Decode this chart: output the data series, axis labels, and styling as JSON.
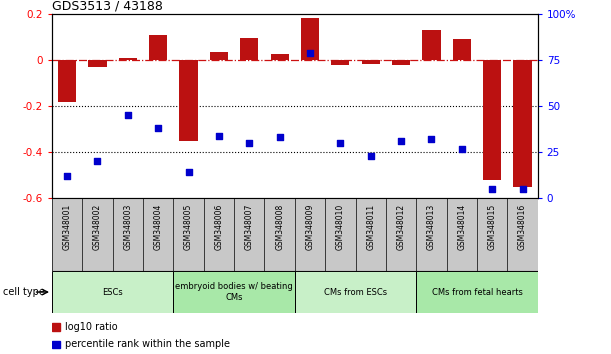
{
  "title": "GDS3513 / 43188",
  "samples": [
    "GSM348001",
    "GSM348002",
    "GSM348003",
    "GSM348004",
    "GSM348005",
    "GSM348006",
    "GSM348007",
    "GSM348008",
    "GSM348009",
    "GSM348010",
    "GSM348011",
    "GSM348012",
    "GSM348013",
    "GSM348014",
    "GSM348015",
    "GSM348016"
  ],
  "log10_ratio": [
    -0.18,
    -0.03,
    0.01,
    0.11,
    -0.35,
    0.035,
    0.095,
    0.025,
    0.185,
    -0.02,
    -0.015,
    -0.02,
    0.13,
    0.09,
    -0.52,
    -0.55
  ],
  "percentile_rank": [
    12,
    20,
    45,
    38,
    14,
    34,
    30,
    33,
    79,
    30,
    23,
    31,
    32,
    27,
    5,
    5
  ],
  "cell_types": [
    {
      "label": "ESCs",
      "start": 0,
      "end": 4,
      "color": "#C8F0C8"
    },
    {
      "label": "embryoid bodies w/ beating\nCMs",
      "start": 4,
      "end": 8,
      "color": "#A8E8A8"
    },
    {
      "label": "CMs from ESCs",
      "start": 8,
      "end": 12,
      "color": "#C8F0C8"
    },
    {
      "label": "CMs from fetal hearts",
      "start": 12,
      "end": 16,
      "color": "#A8E8A8"
    }
  ],
  "ylim_left": [
    -0.6,
    0.2
  ],
  "ylim_right": [
    0,
    100
  ],
  "yticks_left": [
    -0.6,
    -0.4,
    -0.2,
    0.0,
    0.2
  ],
  "yticks_right": [
    0,
    25,
    50,
    75,
    100
  ],
  "bar_color": "#BB1111",
  "scatter_color": "#0000CC",
  "zeroline_color": "#CC1111",
  "bg_color": "#FFFFFF",
  "legend_bar_label": "log10 ratio",
  "legend_scatter_label": "percentile rank within the sample",
  "sample_box_color": "#C8C8C8",
  "cell_type_label": "cell type"
}
